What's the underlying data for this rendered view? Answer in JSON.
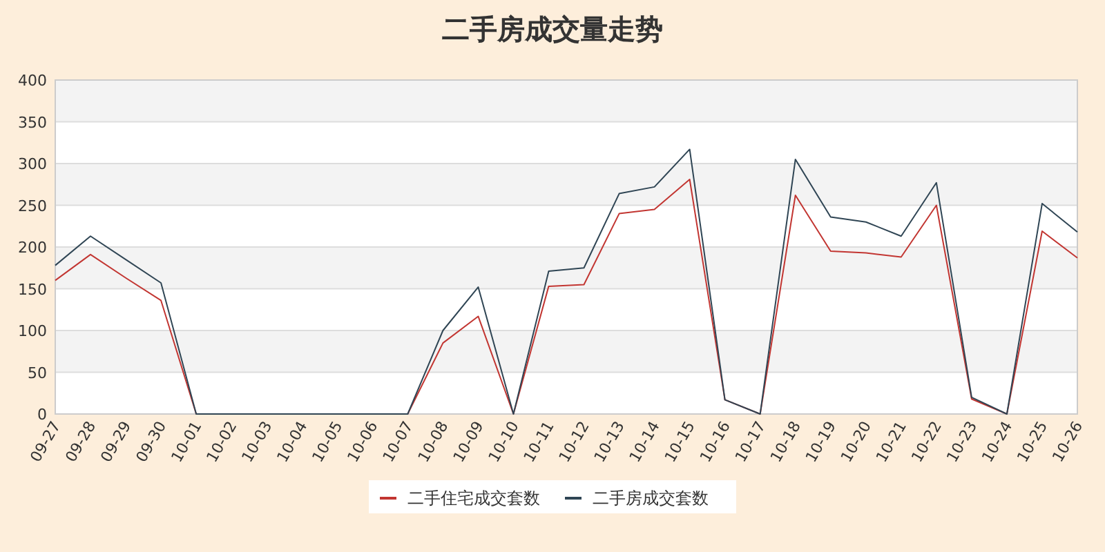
{
  "chart_data": {
    "type": "line",
    "title": "二手房成交量走势",
    "categories": [
      "09-27",
      "09-28",
      "09-29",
      "09-30",
      "10-01",
      "10-02",
      "10-03",
      "10-04",
      "10-05",
      "10-06",
      "10-07",
      "10-08",
      "10-09",
      "10-10",
      "10-11",
      "10-12",
      "10-13",
      "10-14",
      "10-15",
      "10-16",
      "10-17",
      "10-18",
      "10-19",
      "10-20",
      "10-21",
      "10-22",
      "10-23",
      "10-24",
      "10-25",
      "10-26"
    ],
    "series": [
      {
        "name": "二手住宅成交套数",
        "color": "#c23531",
        "values": [
          160,
          191,
          163,
          136,
          0,
          0,
          0,
          0,
          0,
          0,
          0,
          85,
          117,
          0,
          153,
          155,
          240,
          245,
          281,
          17,
          0,
          262,
          195,
          193,
          188,
          250,
          18,
          0,
          219,
          187
        ]
      },
      {
        "name": "二手房成交套数",
        "color": "#2f4554",
        "values": [
          178,
          213,
          185,
          157,
          0,
          0,
          0,
          0,
          0,
          0,
          0,
          100,
          152,
          0,
          171,
          175,
          264,
          272,
          317,
          17,
          0,
          305,
          236,
          230,
          213,
          277,
          20,
          0,
          252,
          218
        ]
      }
    ],
    "ylim": [
      0,
      400
    ],
    "yticks": [
      0,
      50,
      100,
      150,
      200,
      250,
      300,
      350,
      400
    ],
    "grid": "y",
    "legend": "bottom",
    "marker": "none",
    "line_style": "solid"
  }
}
